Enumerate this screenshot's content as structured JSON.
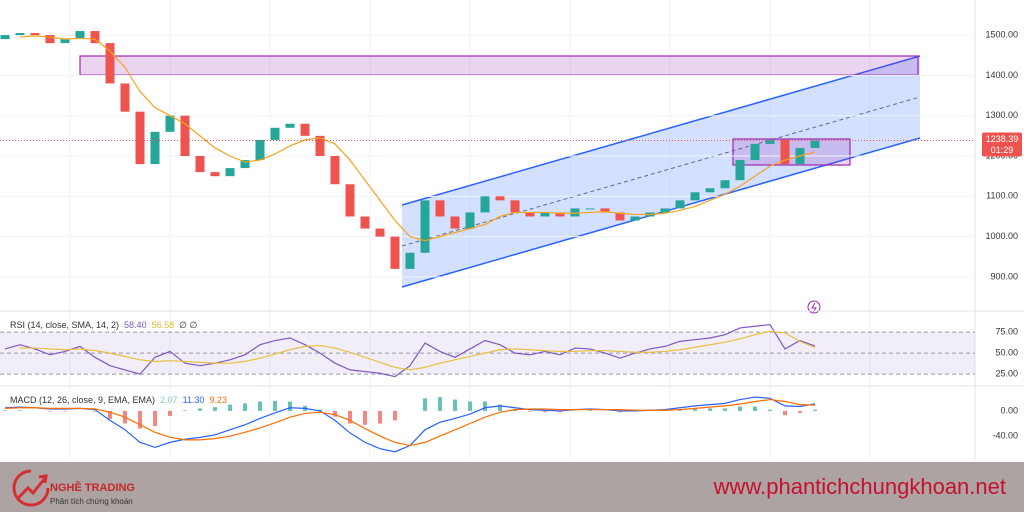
{
  "chart_data": [
    {
      "type": "candlestick",
      "open": [
        1490,
        1500,
        1505,
        1500,
        1480,
        1490,
        1510,
        1480,
        1380,
        1310,
        1180,
        1260,
        1300,
        1200,
        1160,
        1150,
        1170,
        1190,
        1240,
        1270,
        1280,
        1250,
        1200,
        1130,
        1050,
        1020,
        1000,
        920,
        960,
        1090,
        1050,
        1020,
        1060,
        1100,
        1090,
        1060,
        1050,
        1060,
        1050,
        1070,
        1070,
        1060,
        1040,
        1050,
        1060,
        1070,
        1090,
        1110,
        1120,
        1140,
        1190,
        1230,
        1240,
        1180,
        1220
      ],
      "close": [
        1500,
        1505,
        1500,
        1480,
        1490,
        1510,
        1480,
        1380,
        1310,
        1180,
        1260,
        1300,
        1200,
        1160,
        1150,
        1170,
        1190,
        1240,
        1270,
        1280,
        1250,
        1200,
        1130,
        1050,
        1020,
        1000,
        920,
        960,
        1090,
        1050,
        1020,
        1060,
        1100,
        1090,
        1060,
        1050,
        1060,
        1050,
        1070,
        1070,
        1060,
        1040,
        1050,
        1060,
        1070,
        1090,
        1110,
        1120,
        1140,
        1190,
        1230,
        1240,
        1180,
        1220,
        1238.39
      ],
      "up_color": "#26a69a",
      "down_color": "#ef5350",
      "series": [
        {
          "color": "#f7a21b",
          "values": [
            null,
            1495,
            1498,
            1495,
            1490,
            1492,
            1490,
            1460,
            1420,
            1360,
            1320,
            1300,
            1280,
            1250,
            1220,
            1200,
            1185,
            1190,
            1205,
            1225,
            1240,
            1245,
            1230,
            1190,
            1140,
            1090,
            1040,
            1000,
            990,
            1000,
            1010,
            1020,
            1030,
            1050,
            1060,
            1060,
            1060,
            1058,
            1058,
            1060,
            1062,
            1058,
            1055,
            1055,
            1058,
            1065,
            1075,
            1090,
            1105,
            1125,
            1150,
            1175,
            1190,
            1200,
            1210
          ]
        }
      ],
      "ylim": [
        818,
        1587
      ],
      "yticks": [
        {
          "value": 900,
          "label": "900.00"
        },
        {
          "value": 1000,
          "label": "1000.00"
        },
        {
          "value": 1100,
          "label": "1100.00"
        },
        {
          "value": 1200,
          "label": "1200.00"
        },
        {
          "value": 1300,
          "label": "1300.00"
        },
        {
          "value": 1400,
          "label": "1400.00"
        },
        {
          "value": 1500,
          "label": "1500.00"
        }
      ],
      "grid": true,
      "last_price": 1238.39,
      "countdown": "01:29"
    },
    {
      "type": "line",
      "title": "RSI (14, close, SMA, 14, 2)",
      "readouts": [
        {
          "value": 58.4,
          "label": "58.40",
          "color": "#7e57c2"
        },
        {
          "value": 56.58,
          "label": "56.58",
          "color": "#e8b82a"
        }
      ],
      "extra": "∅ ∅",
      "series": [
        {
          "color": "#7e57c2",
          "values": [
            55,
            60,
            55,
            48,
            52,
            58,
            45,
            35,
            30,
            25,
            45,
            52,
            38,
            35,
            38,
            42,
            48,
            60,
            65,
            68,
            60,
            50,
            38,
            30,
            28,
            26,
            22,
            35,
            62,
            52,
            45,
            55,
            65,
            60,
            50,
            48,
            52,
            48,
            56,
            55,
            50,
            44,
            50,
            55,
            58,
            64,
            66,
            68,
            72,
            80,
            82,
            84,
            55,
            65,
            58.4
          ]
        },
        {
          "color": "#e8c040",
          "values": [
            null,
            56,
            56,
            55,
            54,
            55,
            53,
            50,
            46,
            42,
            40,
            41,
            40,
            39,
            38,
            38,
            40,
            44,
            49,
            54,
            58,
            59,
            56,
            51,
            45,
            39,
            33,
            30,
            33,
            38,
            42,
            46,
            50,
            54,
            55,
            54,
            53,
            52,
            52,
            53,
            53,
            52,
            51,
            51,
            52,
            54,
            57,
            60,
            63,
            67,
            72,
            76,
            74,
            64,
            56.58
          ]
        }
      ],
      "ylim": [
        12,
        99
      ],
      "yticks": [
        {
          "value": 25,
          "label": "25.00"
        },
        {
          "value": 50,
          "label": "50.00"
        },
        {
          "value": 75,
          "label": "75.00"
        }
      ],
      "band_color": "#7e57c2",
      "grid": "dashed"
    },
    {
      "type": "macd",
      "title": "MACD (12, 26, close, 9, EMA, EMA)",
      "readouts": [
        {
          "value": 2.07,
          "label": "2.07",
          "color": "#80cbc4"
        },
        {
          "value": 11.3,
          "label": "11.30",
          "color": "#2962ff"
        },
        {
          "value": 9.23,
          "label": "9.23",
          "color": "#ff6d00"
        }
      ],
      "histogram": {
        "up_color": "#26a69a",
        "down_color": "#ef5350",
        "values": [
          1,
          1,
          0,
          -1,
          -1,
          0,
          -1,
          -13,
          -20,
          -28,
          -24,
          -8,
          1,
          4,
          6,
          10,
          12,
          15,
          16,
          15,
          8,
          2,
          -9,
          -20,
          -22,
          -20,
          -15,
          0,
          20,
          22,
          18,
          15,
          15,
          10,
          3,
          -1,
          -2,
          -2,
          0,
          1,
          0,
          -2,
          -1,
          0,
          1,
          3,
          4,
          4,
          4,
          7,
          7,
          2,
          -7,
          -3,
          2.07
        ]
      },
      "series": [
        {
          "color": "#2962ff",
          "values": [
            5,
            6,
            5,
            3,
            3,
            4,
            2,
            -15,
            -30,
            -50,
            -58,
            -50,
            -45,
            -42,
            -38,
            -30,
            -22,
            -12,
            -3,
            5,
            4,
            0,
            -15,
            -35,
            -50,
            -60,
            -65,
            -55,
            -30,
            -18,
            -12,
            -5,
            5,
            8,
            5,
            2,
            1,
            0,
            2,
            3,
            2,
            0,
            0,
            1,
            2,
            5,
            8,
            10,
            12,
            18,
            22,
            20,
            8,
            7,
            11.3
          ]
        },
        {
          "color": "#ff6d00",
          "values": [
            4,
            5,
            5,
            4,
            4,
            4,
            3,
            -2,
            -10,
            -22,
            -34,
            -42,
            -46,
            -46,
            -44,
            -40,
            -34,
            -27,
            -19,
            -10,
            -4,
            -2,
            -6,
            -15,
            -28,
            -40,
            -50,
            -55,
            -50,
            -40,
            -30,
            -20,
            -10,
            -2,
            2,
            3,
            3,
            2,
            2,
            2,
            2,
            2,
            1,
            1,
            1,
            2,
            4,
            6,
            8,
            11,
            15,
            18,
            15,
            10,
            9.23
          ]
        }
      ],
      "ylim": [
        -78,
        38
      ],
      "yticks": [
        {
          "value": -40,
          "label": "-40.00"
        },
        {
          "value": 0,
          "label": "0.00"
        }
      ],
      "grid": false
    }
  ],
  "banner": {
    "brand": "NGHỀ TRADING",
    "tagline": "Phân tích chứng khoán",
    "website": "www.phantichchungkhoan.net"
  }
}
